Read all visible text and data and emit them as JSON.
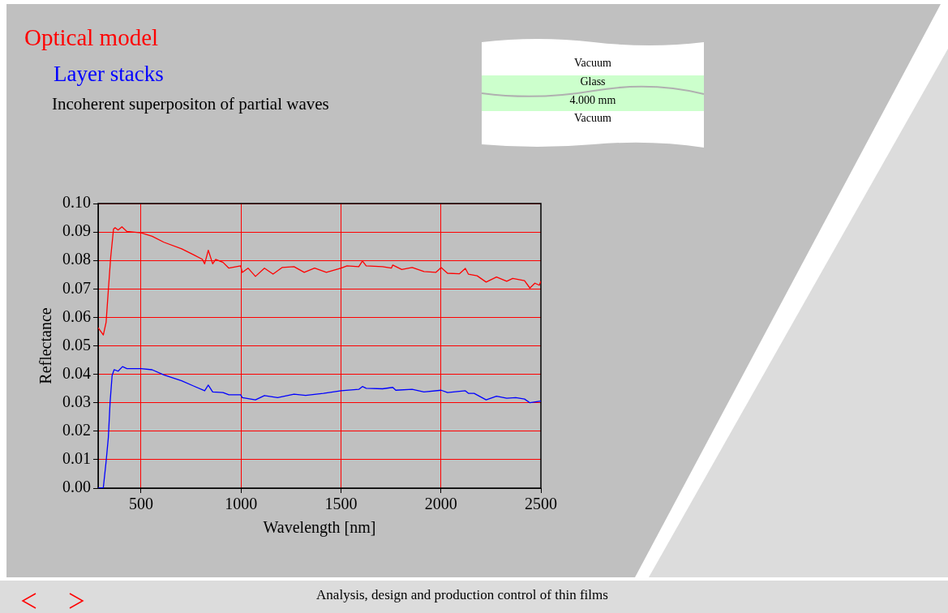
{
  "chart_data": {
    "type": "line",
    "title": "Optical model",
    "subtitle": "Layer stacks",
    "xlabel": "Wavelength [nm]",
    "ylabel": "Reflectance",
    "annotations": [
      "Incoherent superpositon of partial waves",
      "Vacuum",
      "Glass",
      "4.000 mm",
      "Vacuum",
      "Analysis, design and production control of thin films"
    ],
    "xlim": [
      285,
      2500
    ],
    "xticks": [
      500,
      1000,
      1500,
      2000,
      2500
    ],
    "ylim": [
      0,
      0.1
    ],
    "yticks": [
      {
        "value": 0,
        "label": "0.00"
      },
      {
        "value": 0.01,
        "label": "0.01"
      },
      {
        "value": 0.02,
        "label": "0.02"
      },
      {
        "value": 0.03,
        "label": "0.03"
      },
      {
        "value": 0.04,
        "label": "0.04"
      },
      {
        "value": 0.05,
        "label": "0.05"
      },
      {
        "value": 0.06,
        "label": "0.06"
      },
      {
        "value": 0.07,
        "label": "0.07"
      },
      {
        "value": 0.08,
        "label": "0.08"
      },
      {
        "value": 0.09,
        "label": "0.09"
      },
      {
        "value": 0.1,
        "label": "0.10"
      }
    ],
    "grid": true,
    "legend": false,
    "marker": "none",
    "line_style": "solid",
    "series": [
      {
        "color": "#ff0000",
        "x": [
          285,
          311,
          325,
          336,
          348,
          362,
          370,
          385,
          404,
          429,
          500,
          555,
          614,
          703,
          762,
          806,
          818,
          836,
          858,
          873,
          910,
          939,
          998,
          1006,
          1035,
          1072,
          1117,
          1160,
          1205,
          1265,
          1316,
          1368,
          1427,
          1501,
          1530,
          1589,
          1607,
          1626,
          1708,
          1752,
          1759,
          1804,
          1856,
          1915,
          1974,
          2001,
          2033,
          2092,
          2122,
          2137,
          2181,
          2226,
          2278,
          2329,
          2359,
          2418,
          2445,
          2470,
          2492,
          2500
        ],
        "values": [
          0.0564,
          0.0538,
          0.0583,
          0.0695,
          0.0812,
          0.091,
          0.0915,
          0.0907,
          0.0918,
          0.0902,
          0.0897,
          0.0885,
          0.0864,
          0.0841,
          0.082,
          0.0804,
          0.0788,
          0.0836,
          0.0788,
          0.0804,
          0.0793,
          0.0773,
          0.0781,
          0.0758,
          0.0773,
          0.0744,
          0.0773,
          0.0752,
          0.0775,
          0.0778,
          0.0758,
          0.0773,
          0.0758,
          0.0773,
          0.0781,
          0.0778,
          0.0798,
          0.0781,
          0.0778,
          0.0773,
          0.0784,
          0.0768,
          0.0775,
          0.0761,
          0.0758,
          0.0775,
          0.0755,
          0.0753,
          0.0772,
          0.0752,
          0.0746,
          0.0724,
          0.0742,
          0.0727,
          0.0737,
          0.0729,
          0.0703,
          0.072,
          0.0713,
          0.0727
        ]
      },
      {
        "color": "#0000ff",
        "x": [
          285,
          311,
          325,
          336,
          345,
          355,
          365,
          385,
          407,
          429,
          500,
          555,
          614,
          703,
          762,
          818,
          836,
          858,
          910,
          939,
          998,
          1006,
          1072,
          1117,
          1183,
          1265,
          1323,
          1412,
          1501,
          1589,
          1607,
          1626,
          1708,
          1759,
          1774,
          1856,
          1915,
          2001,
          2033,
          2122,
          2137,
          2166,
          2226,
          2278,
          2329,
          2374,
          2418,
          2445,
          2500
        ],
        "values": [
          0,
          0.0002,
          0.0094,
          0.0177,
          0.0303,
          0.0396,
          0.0416,
          0.0411,
          0.0427,
          0.042,
          0.042,
          0.0416,
          0.0398,
          0.0377,
          0.0359,
          0.0342,
          0.0362,
          0.0338,
          0.0336,
          0.0328,
          0.0328,
          0.0318,
          0.031,
          0.0325,
          0.0318,
          0.033,
          0.0326,
          0.0333,
          0.0342,
          0.0347,
          0.0357,
          0.0351,
          0.0349,
          0.0354,
          0.0344,
          0.0347,
          0.0338,
          0.0344,
          0.0336,
          0.0342,
          0.0333,
          0.0333,
          0.031,
          0.0323,
          0.0316,
          0.0318,
          0.0313,
          0.03,
          0.0306
        ]
      }
    ]
  }
}
